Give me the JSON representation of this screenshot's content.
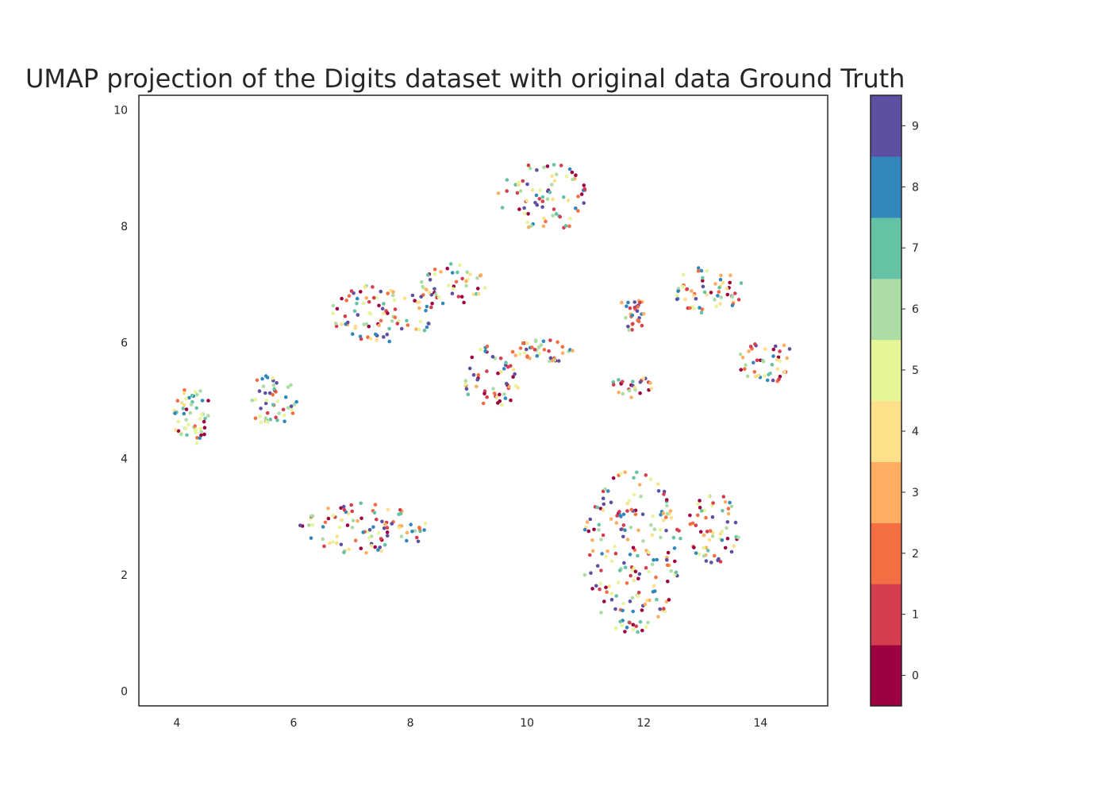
{
  "chart_data": {
    "type": "scatter",
    "title": "UMAP projection of the Digits dataset with original data Ground Truth",
    "xlim": [
      3.35,
      15.15
    ],
    "ylim": [
      -0.25,
      10.25
    ],
    "x_ticks": [
      4,
      6,
      8,
      10,
      12,
      14
    ],
    "y_ticks": [
      0,
      2,
      4,
      6,
      8,
      10
    ],
    "grid": false,
    "colorbar": {
      "labels": [
        "0",
        "1",
        "2",
        "3",
        "4",
        "5",
        "6",
        "7",
        "8",
        "9"
      ],
      "colors": [
        "#9e0142",
        "#d53e4f",
        "#f46d43",
        "#fdae61",
        "#fee08b",
        "#e6f598",
        "#abdda4",
        "#66c2a5",
        "#3288bd",
        "#5e4fa2"
      ]
    },
    "clusters": [
      {
        "cx": 4.25,
        "cy": 4.75,
        "rx": 0.35,
        "ry": 0.5,
        "n": 55,
        "labels": [
          0,
          2,
          4,
          5,
          6,
          7,
          8
        ]
      },
      {
        "cx": 5.65,
        "cy": 5.0,
        "rx": 0.45,
        "ry": 0.45,
        "n": 50,
        "labels": [
          1,
          2,
          5,
          6,
          7,
          8,
          9
        ]
      },
      {
        "cx": 7.2,
        "cy": 2.8,
        "rx": 1.1,
        "ry": 0.45,
        "n": 95,
        "labels": [
          0,
          1,
          2,
          3,
          4,
          5,
          6,
          7,
          8,
          9
        ]
      },
      {
        "cx": 7.5,
        "cy": 6.5,
        "rx": 1.0,
        "ry": 0.5,
        "n": 90,
        "labels": [
          0,
          1,
          2,
          3,
          4,
          5,
          6,
          7,
          8,
          9
        ]
      },
      {
        "cx": 8.7,
        "cy": 7.0,
        "rx": 0.6,
        "ry": 0.35,
        "n": 45,
        "labels": [
          0,
          1,
          2,
          3,
          4,
          5,
          6,
          7,
          8,
          9
        ]
      },
      {
        "cx": 9.4,
        "cy": 5.4,
        "rx": 0.5,
        "ry": 0.55,
        "n": 55,
        "labels": [
          0,
          1,
          2,
          3,
          4,
          5,
          6,
          7,
          8,
          9
        ]
      },
      {
        "cx": 10.3,
        "cy": 8.5,
        "rx": 0.8,
        "ry": 0.6,
        "n": 75,
        "labels": [
          0,
          1,
          2,
          3,
          4,
          5,
          6,
          7,
          8,
          9
        ]
      },
      {
        "cx": 10.3,
        "cy": 5.85,
        "rx": 0.55,
        "ry": 0.2,
        "n": 40,
        "labels": [
          0,
          1,
          2,
          3,
          4,
          5,
          6,
          8,
          9
        ]
      },
      {
        "cx": 11.8,
        "cy": 6.5,
        "rx": 0.25,
        "ry": 0.3,
        "n": 30,
        "labels": [
          1,
          2,
          3,
          6,
          8,
          9
        ]
      },
      {
        "cx": 11.8,
        "cy": 5.25,
        "rx": 0.35,
        "ry": 0.2,
        "n": 25,
        "labels": [
          0,
          1,
          3,
          4,
          6,
          7,
          9
        ]
      },
      {
        "cx": 13.1,
        "cy": 6.9,
        "rx": 0.6,
        "ry": 0.4,
        "n": 60,
        "labels": [
          0,
          1,
          2,
          3,
          4,
          5,
          6,
          7,
          8,
          9
        ]
      },
      {
        "cx": 14.1,
        "cy": 5.7,
        "rx": 0.5,
        "ry": 0.4,
        "n": 45,
        "labels": [
          0,
          1,
          2,
          3,
          4,
          5,
          6,
          7,
          8,
          9
        ]
      },
      {
        "cx": 11.8,
        "cy": 2.4,
        "rx": 0.85,
        "ry": 1.4,
        "n": 190,
        "labels": [
          0,
          1,
          2,
          3,
          4,
          5,
          6,
          7,
          8,
          9
        ]
      },
      {
        "cx": 13.2,
        "cy": 2.8,
        "rx": 0.45,
        "ry": 0.6,
        "n": 60,
        "labels": [
          0,
          1,
          2,
          3,
          4,
          5,
          6,
          7,
          8,
          9
        ]
      }
    ]
  }
}
